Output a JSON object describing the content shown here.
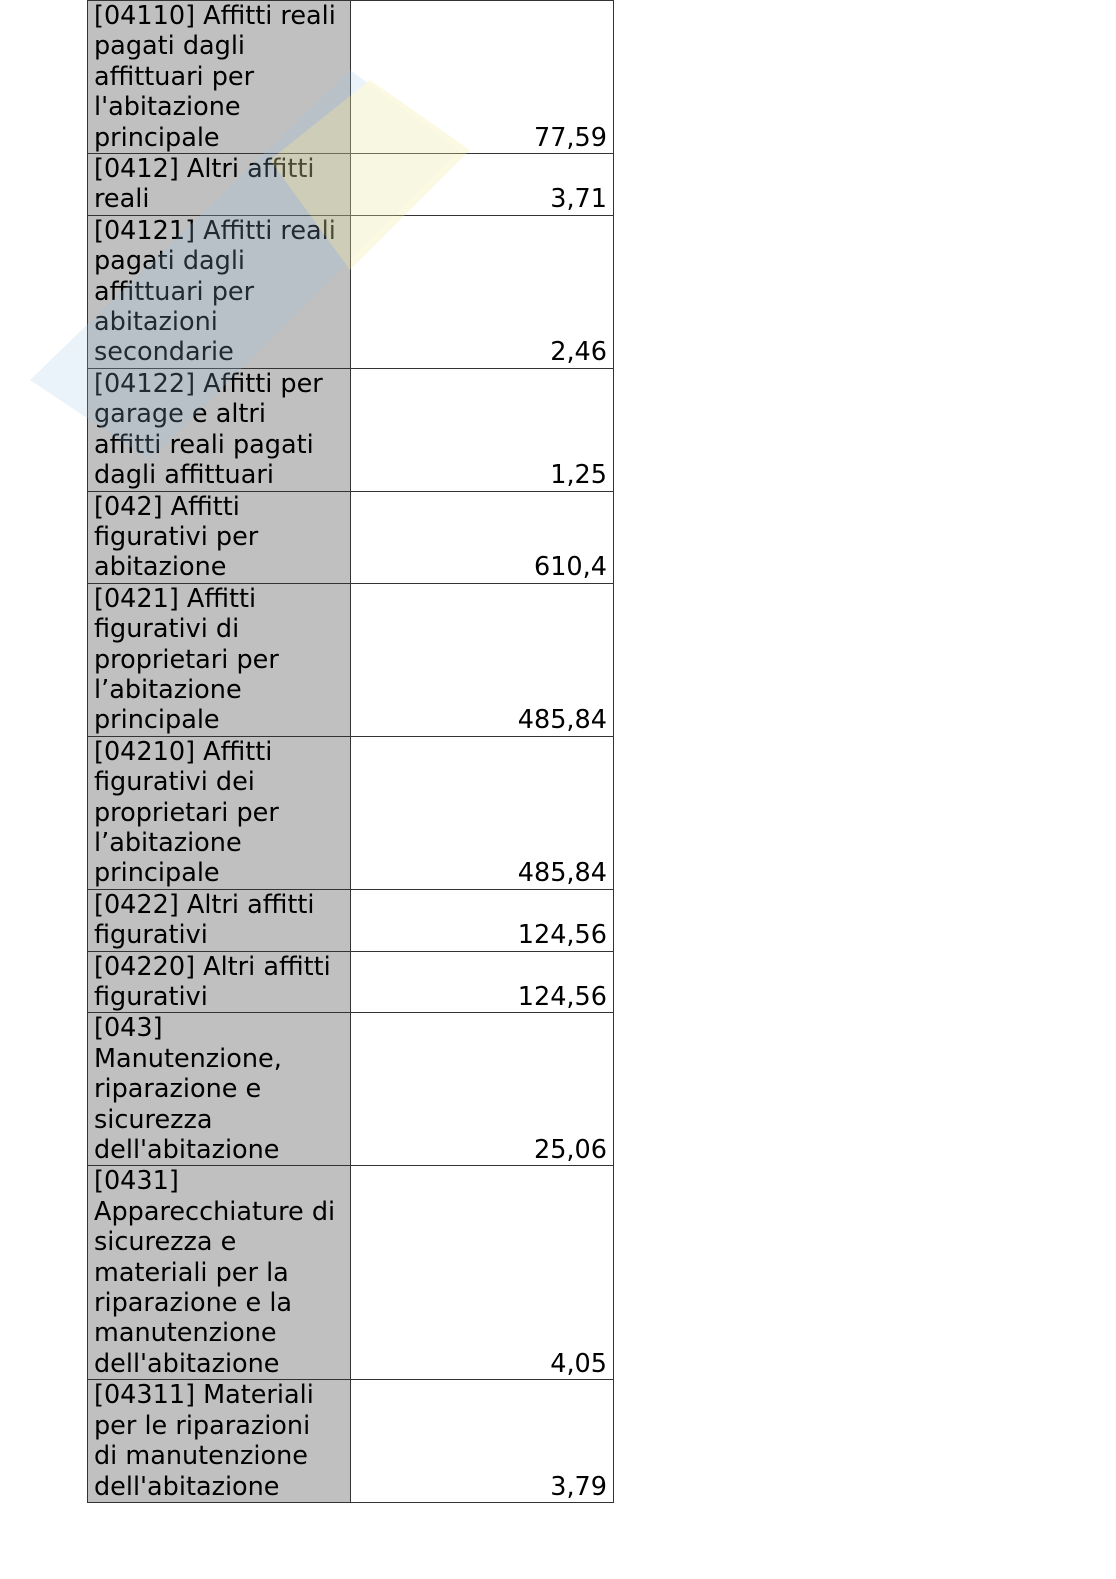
{
  "rows": [
    {
      "label": "[04110] Affitti reali\npagati dagli\naffittuari per\nl'abitazione\nprincipale",
      "value": "77,59"
    },
    {
      "label": "[0412] Altri affitti\nreali",
      "value": "3,71"
    },
    {
      "label": "[04121] Affitti reali\npagati dagli\naffittuari per\nabitazioni\nsecondarie",
      "value": "2,46"
    },
    {
      "label": "[04122] Affitti per\ngarage e altri\naffitti reali pagati\ndagli affittuari",
      "value": "1,25"
    },
    {
      "label": "[042] Affitti\nfigurativi per\nabitazione",
      "value": "610,4"
    },
    {
      "label": "[0421] Affitti\nfigurativi di\nproprietari per\nl’abitazione\nprincipale",
      "value": "485,84"
    },
    {
      "label": "[04210] Affitti\nfigurativi dei\nproprietari per\nl’abitazione\nprincipale",
      "value": "485,84"
    },
    {
      "label": "[0422] Altri affitti\nfigurativi",
      "value": "124,56"
    },
    {
      "label": "[04220] Altri affitti\nfigurativi",
      "value": "124,56"
    },
    {
      "label": "[043]\nManutenzione,\nriparazione e\nsicurezza\ndell'abitazione",
      "value": "25,06"
    },
    {
      "label": "[0431]\nApparecchiature di\nsicurezza e\nmateriali per la\nriparazione e la\nmanutenzione\ndell'abitazione",
      "value": "4,05"
    },
    {
      "label": "[04311] Materiali\nper le riparazioni\ndi manutenzione\ndell'abitazione",
      "value": "3,79"
    }
  ],
  "colors": {
    "label_bg": "#c0c0c0",
    "border": "#333333",
    "watermark_blue": "#9cc8e8",
    "watermark_yellow": "#f5ec9a"
  }
}
